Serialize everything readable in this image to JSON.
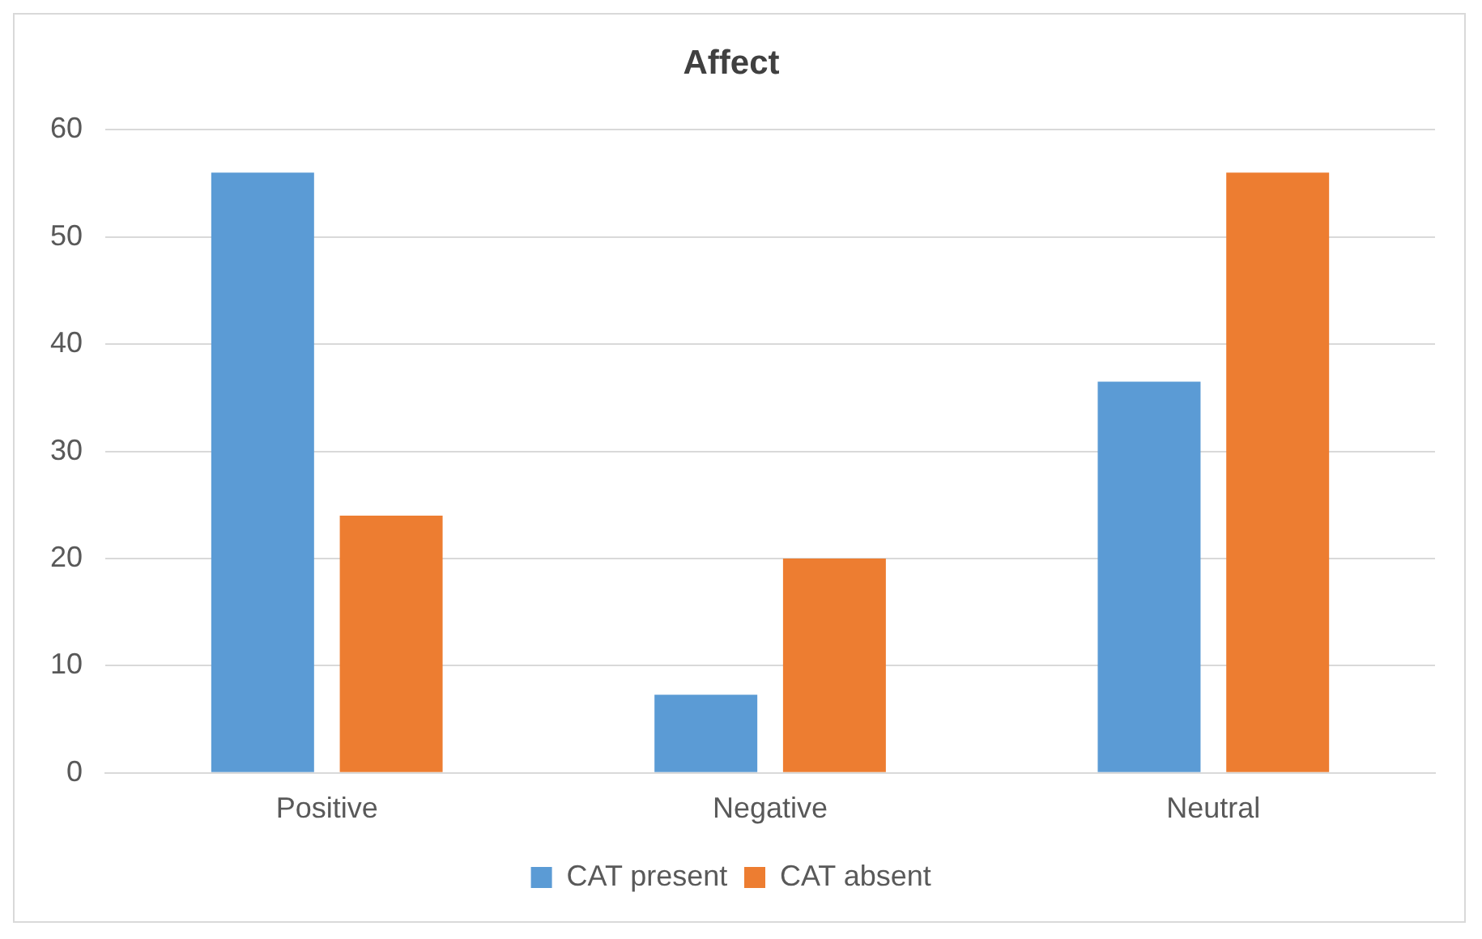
{
  "chart_data": {
    "type": "bar",
    "title": "Affect",
    "categories": [
      "Positive",
      "Negative",
      "Neutral"
    ],
    "series": [
      {
        "name": "CAT present",
        "color": "#5b9bd5",
        "values": [
          56,
          7.3,
          36.5
        ]
      },
      {
        "name": "CAT absent",
        "color": "#ed7d31",
        "values": [
          24,
          20,
          56
        ]
      }
    ],
    "ylim": [
      0,
      60
    ],
    "yticks": [
      0,
      10,
      20,
      30,
      40,
      50,
      60
    ],
    "grid": "y",
    "legend": "bottom"
  }
}
